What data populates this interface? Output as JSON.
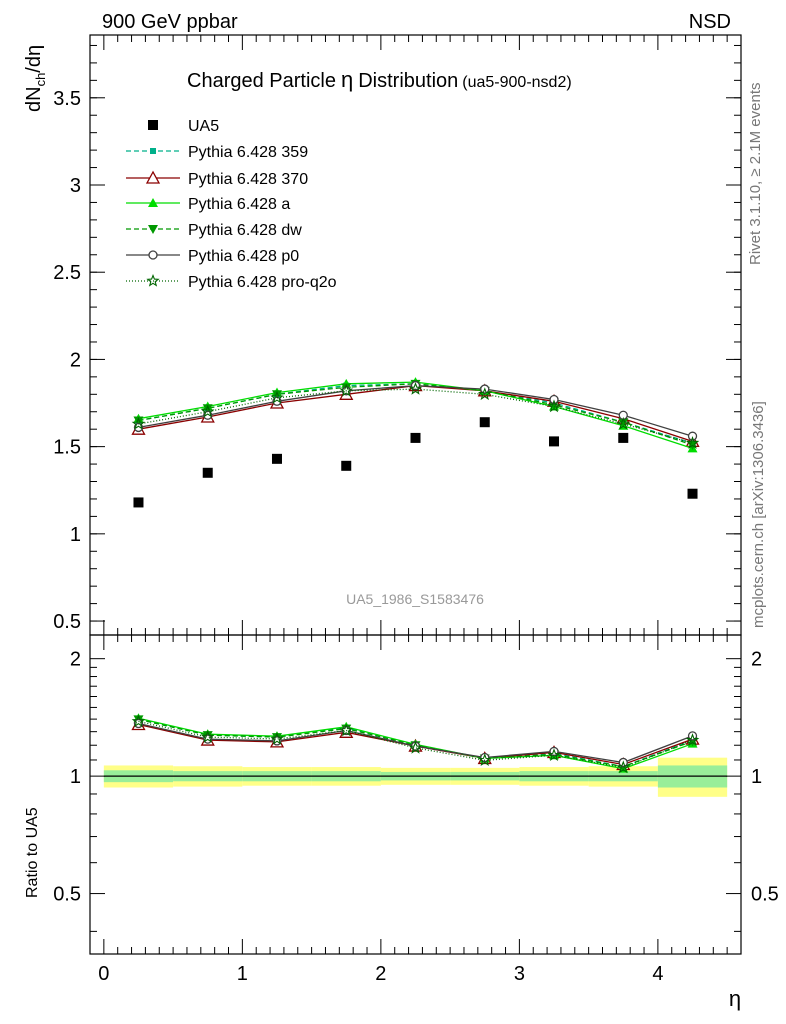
{
  "header": {
    "left": "900 GeV ppbar",
    "right": "NSD",
    "title": "Charged Particle",
    "title_symbol": "η",
    "title_tail": "Distribution",
    "title_ref": "(ua5-900-nsd2)",
    "analysis_id": "UA5_1986_S1583476"
  },
  "side": {
    "rivet": "Rivet 3.1.10, ≥ 2.1M events",
    "mcplots": "mcplots.cern.ch [arXiv:1306.3436]"
  },
  "chart_data": [
    {
      "type": "scatter",
      "title": "Charged Particle η Distribution (ua5-900-nsd2)",
      "ylabel_main": "dN",
      "ylabel_sub": "ch",
      "ylabel_tail": "/dη",
      "xlim": [
        -0.1,
        4.6
      ],
      "ylim": [
        0.42,
        3.86
      ],
      "yticks": [
        "0.5",
        "1",
        "1.5",
        "2",
        "2.5",
        "3",
        "3.5"
      ],
      "ytick_values": [
        0.5,
        1,
        1.5,
        2,
        2.5,
        3,
        3.5
      ],
      "x": [
        0.25,
        0.75,
        1.25,
        1.75,
        2.25,
        2.75,
        3.25,
        3.75,
        4.25
      ],
      "series": [
        {
          "name": "UA5",
          "color": "#000000",
          "marker": "square",
          "values": [
            1.18,
            1.35,
            1.43,
            1.39,
            1.55,
            1.64,
            1.53,
            1.55,
            1.23
          ]
        },
        {
          "name": "Pythia 6.428 359",
          "color": "#00b08a",
          "marker": "square-small",
          "dash": "5,3",
          "values": [
            1.65,
            1.72,
            1.8,
            1.85,
            1.86,
            1.82,
            1.75,
            1.64,
            1.52
          ]
        },
        {
          "name": "Pythia 6.428 370",
          "color": "#8b0000",
          "marker": "triangle-open",
          "dash": "",
          "values": [
            1.6,
            1.67,
            1.75,
            1.8,
            1.85,
            1.82,
            1.76,
            1.66,
            1.53
          ]
        },
        {
          "name": "Pythia 6.428 a",
          "color": "#00dd00",
          "marker": "triangle",
          "dash": "",
          "values": [
            1.66,
            1.73,
            1.81,
            1.86,
            1.87,
            1.82,
            1.73,
            1.62,
            1.49
          ]
        },
        {
          "name": "Pythia 6.428 dw",
          "color": "#009900",
          "marker": "triangle-down",
          "dash": "5,3",
          "values": [
            1.65,
            1.72,
            1.8,
            1.84,
            1.86,
            1.82,
            1.74,
            1.64,
            1.51
          ]
        },
        {
          "name": "Pythia 6.428 p0",
          "color": "#404040",
          "marker": "circle-open",
          "dash": "",
          "values": [
            1.61,
            1.68,
            1.76,
            1.82,
            1.85,
            1.83,
            1.77,
            1.68,
            1.56
          ]
        },
        {
          "name": "Pythia 6.428 pro-q2o",
          "color": "#006600",
          "marker": "star",
          "dash": "1,2",
          "values": [
            1.63,
            1.7,
            1.78,
            1.82,
            1.83,
            1.8,
            1.73,
            1.63,
            1.52
          ]
        }
      ]
    },
    {
      "type": "line",
      "ylabel": "Ratio to UA5",
      "xlabel": "η",
      "xlim": [
        -0.1,
        4.6
      ],
      "ylim": [
        0.35,
        2.3
      ],
      "yticks": [
        "0.5",
        "1",
        "2"
      ],
      "ytick_values": [
        0.5,
        1,
        2
      ],
      "xticks": [
        "0",
        "1",
        "2",
        "3",
        "4"
      ],
      "xtick_values": [
        0,
        1,
        2,
        3,
        4
      ],
      "x": [
        0.25,
        0.75,
        1.25,
        1.75,
        2.25,
        2.75,
        3.25,
        3.75,
        4.25
      ],
      "band": {
        "edges": [
          0,
          0.5,
          1,
          1.5,
          2,
          2.5,
          3,
          3.5,
          4,
          4.5
        ],
        "stat": [
          0.035,
          0.03,
          0.03,
          0.03,
          0.025,
          0.025,
          0.03,
          0.03,
          0.065
        ],
        "total": [
          0.065,
          0.06,
          0.055,
          0.055,
          0.05,
          0.05,
          0.055,
          0.06,
          0.115
        ]
      },
      "series": [
        {
          "name": "Pythia 6.428 359",
          "values": [
            1.398,
            1.274,
            1.259,
            1.331,
            1.2,
            1.11,
            1.144,
            1.058,
            1.236
          ]
        },
        {
          "name": "Pythia 6.428 370",
          "values": [
            1.356,
            1.237,
            1.224,
            1.295,
            1.194,
            1.11,
            1.15,
            1.071,
            1.244
          ]
        },
        {
          "name": "Pythia 6.428 a",
          "values": [
            1.407,
            1.281,
            1.266,
            1.338,
            1.206,
            1.11,
            1.131,
            1.045,
            1.211
          ]
        },
        {
          "name": "Pythia 6.428 dw",
          "values": [
            1.398,
            1.274,
            1.259,
            1.324,
            1.2,
            1.11,
            1.137,
            1.058,
            1.228
          ]
        },
        {
          "name": "Pythia 6.428 p0",
          "values": [
            1.364,
            1.244,
            1.231,
            1.309,
            1.194,
            1.116,
            1.157,
            1.084,
            1.268
          ]
        },
        {
          "name": "Pythia 6.428 pro-q2o",
          "values": [
            1.381,
            1.259,
            1.245,
            1.309,
            1.181,
            1.098,
            1.131,
            1.052,
            1.236
          ]
        }
      ]
    }
  ]
}
